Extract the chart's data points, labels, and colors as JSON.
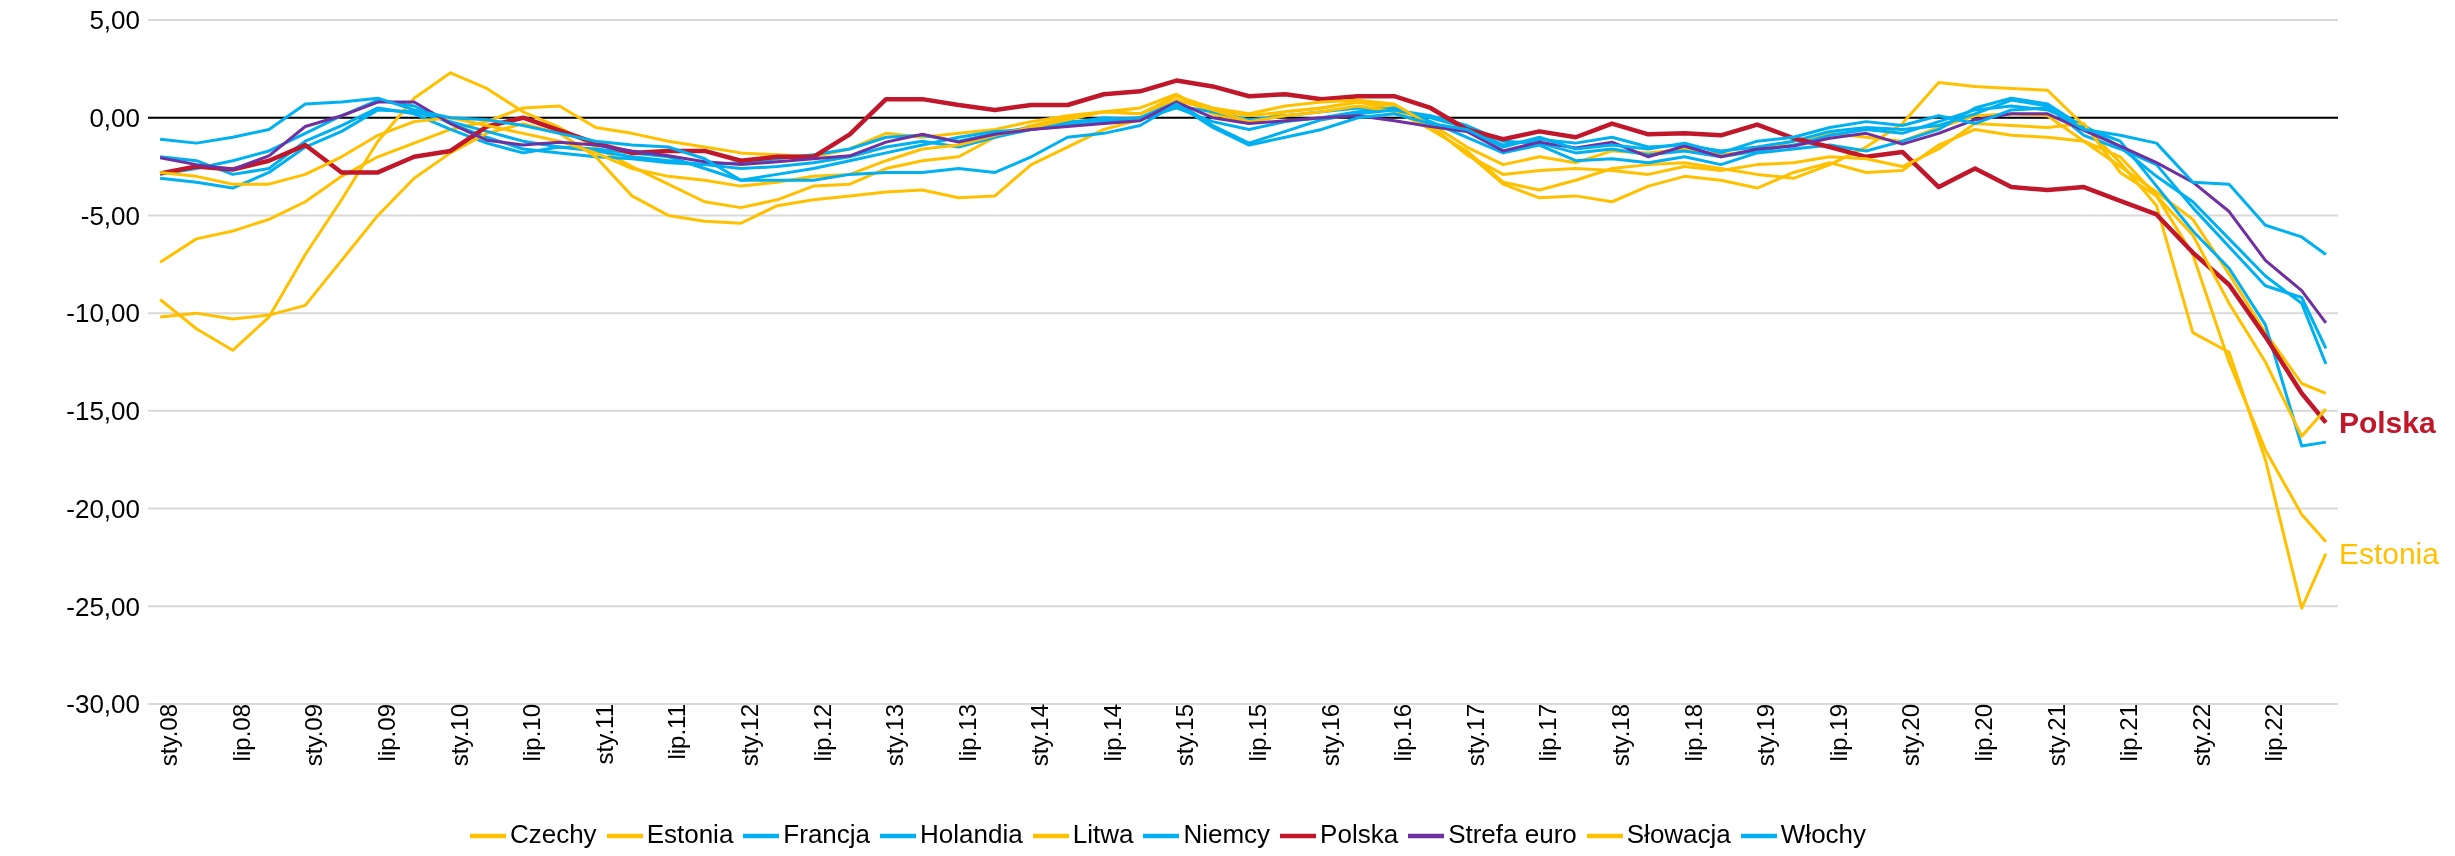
{
  "chart_data": {
    "type": "line",
    "x": [
      "2008-01",
      "2008-04",
      "2008-07",
      "2008-10",
      "2009-01",
      "2009-04",
      "2009-07",
      "2009-10",
      "2010-01",
      "2010-04",
      "2010-07",
      "2010-10",
      "2011-01",
      "2011-04",
      "2011-07",
      "2011-10",
      "2012-01",
      "2012-04",
      "2012-07",
      "2012-10",
      "2013-01",
      "2013-04",
      "2013-07",
      "2013-10",
      "2014-01",
      "2014-04",
      "2014-07",
      "2014-10",
      "2015-01",
      "2015-04",
      "2015-07",
      "2015-10",
      "2016-01",
      "2016-04",
      "2016-07",
      "2016-10",
      "2017-01",
      "2017-04",
      "2017-07",
      "2017-10",
      "2018-01",
      "2018-04",
      "2018-07",
      "2018-10",
      "2019-01",
      "2019-04",
      "2019-07",
      "2019-10",
      "2020-01",
      "2020-04",
      "2020-07",
      "2020-10",
      "2021-01",
      "2021-04",
      "2021-07",
      "2021-10",
      "2022-01",
      "2022-04",
      "2022-07",
      "2022-10",
      "2022-12"
    ],
    "series": [
      {
        "name": "Czechy",
        "color": "#ffc000",
        "values": [
          -7.4,
          -6.2,
          -5.8,
          -5.2,
          -4.3,
          -3.0,
          -2.0,
          -1.3,
          -0.6,
          -0.2,
          0.5,
          0.6,
          -0.5,
          -0.8,
          -1.2,
          -1.5,
          -1.8,
          -1.9,
          -2.0,
          -1.6,
          -0.8,
          -1.0,
          -0.8,
          -0.6,
          -0.2,
          0.1,
          0.3,
          0.2,
          0.9,
          0.4,
          0.1,
          0.3,
          0.5,
          0.8,
          0.6,
          -0.3,
          -1.5,
          -2.4,
          -2.0,
          -2.3,
          -1.7,
          -1.8,
          -1.6,
          -1.9,
          -1.7,
          -1.2,
          -0.8,
          -1.0,
          -1.2,
          -0.5,
          0.1,
          0.2,
          0.1,
          -1.2,
          -2.5,
          -3.8,
          -5.2,
          -8.0,
          -11.0,
          -13.6,
          -14.1
        ]
      },
      {
        "name": "Estonia",
        "color": "#ffc000",
        "values": [
          -9.3,
          -10.8,
          -11.9,
          -10.2,
          -7.0,
          -4.2,
          -1.2,
          1.0,
          2.3,
          1.5,
          0.3,
          -0.5,
          -1.5,
          -2.5,
          -3.4,
          -4.3,
          -4.6,
          -4.2,
          -3.5,
          -3.4,
          -2.6,
          -2.2,
          -2.0,
          -1.0,
          -0.4,
          0.0,
          0.3,
          0.5,
          1.2,
          0.2,
          -0.3,
          0.3,
          0.5,
          0.8,
          0.4,
          -0.6,
          -1.7,
          -3.3,
          -3.7,
          -3.2,
          -2.6,
          -2.4,
          -2.3,
          -2.6,
          -2.9,
          -3.1,
          -2.4,
          -1.5,
          -0.3,
          1.8,
          1.6,
          1.5,
          1.4,
          -0.4,
          -2.3,
          -4.5,
          -11.0,
          -12.0,
          -17.5,
          -25.1,
          -22.3
        ]
      },
      {
        "name": "Francja",
        "color": "#00b0f0",
        "values": [
          -2.0,
          -2.2,
          -2.9,
          -2.6,
          -1.2,
          -0.4,
          0.5,
          0.2,
          -0.6,
          -1.3,
          -1.8,
          -1.5,
          -1.7,
          -2.0,
          -2.2,
          -2.4,
          -2.3,
          -2.1,
          -1.9,
          -1.6,
          -1.0,
          -0.9,
          -1.2,
          -0.8,
          -0.5,
          -0.2,
          -0.1,
          0.0,
          0.6,
          0.3,
          -0.1,
          0.1,
          0.3,
          0.5,
          0.4,
          0.0,
          -0.5,
          -1.4,
          -1.1,
          -1.3,
          -1.0,
          -1.5,
          -1.4,
          -1.7,
          -1.5,
          -1.2,
          -0.7,
          -0.5,
          -0.6,
          -0.4,
          0.2,
          0.9,
          0.6,
          -0.9,
          -1.6,
          -2.4,
          -4.6,
          -6.6,
          -8.6,
          -9.2,
          -11.8
        ]
      },
      {
        "name": "Holandia",
        "color": "#00b0f0",
        "values": [
          -2.9,
          -2.6,
          -2.2,
          -1.7,
          -0.8,
          0.1,
          0.9,
          0.6,
          -0.3,
          -1.0,
          -1.6,
          -1.8,
          -2.0,
          -2.1,
          -2.3,
          -2.4,
          -2.6,
          -2.5,
          -2.3,
          -2.0,
          -1.5,
          -1.2,
          -1.5,
          -1.0,
          -0.6,
          -0.3,
          0.0,
          -0.1,
          0.5,
          -0.2,
          -0.6,
          -0.2,
          0.0,
          0.3,
          0.5,
          -0.2,
          -1.0,
          -1.8,
          -1.4,
          -2.2,
          -2.1,
          -2.3,
          -2.0,
          -2.4,
          -1.8,
          -1.6,
          -1.4,
          -1.7,
          -1.2,
          -0.6,
          0.5,
          1.0,
          0.7,
          -0.5,
          -1.2,
          -3.5,
          -5.8,
          -7.7,
          -10.6,
          -16.8,
          -16.6
        ]
      },
      {
        "name": "Litwa",
        "color": "#ffc000",
        "values": [
          -10.2,
          -10.0,
          -10.3,
          -10.1,
          -9.6,
          -7.3,
          -5.0,
          -3.1,
          -1.8,
          -0.8,
          -0.3,
          -0.8,
          -2.0,
          -4.0,
          -5.0,
          -5.3,
          -5.4,
          -4.5,
          -4.2,
          -4.0,
          -3.8,
          -3.7,
          -4.1,
          -4.0,
          -2.4,
          -1.5,
          -0.6,
          -0.1,
          0.9,
          0.4,
          -0.2,
          0.1,
          0.3,
          0.6,
          0.3,
          -0.5,
          -1.8,
          -3.4,
          -4.1,
          -4.0,
          -4.3,
          -3.5,
          -3.0,
          -3.2,
          -3.6,
          -2.8,
          -2.3,
          -2.8,
          -2.7,
          -1.4,
          -0.6,
          -0.9,
          -1.0,
          -1.2,
          -2.0,
          -4.0,
          -7.0,
          -12.5,
          -17.0,
          -20.3,
          -21.7
        ]
      },
      {
        "name": "Niemcy",
        "color": "#00b0f0",
        "values": [
          -3.1,
          -3.3,
          -3.6,
          -2.8,
          -1.5,
          -0.7,
          0.4,
          0.3,
          -0.2,
          -0.7,
          -1.2,
          -1.5,
          -1.6,
          -1.8,
          -2.0,
          -2.6,
          -3.2,
          -2.9,
          -2.6,
          -2.2,
          -1.8,
          -1.4,
          -1.0,
          -0.7,
          -0.6,
          -0.4,
          -0.2,
          0.0,
          0.8,
          -0.4,
          -1.3,
          -0.7,
          -0.1,
          0.2,
          0.4,
          0.1,
          -0.4,
          -1.2,
          -1.3,
          -1.8,
          -1.6,
          -1.9,
          -1.7,
          -2.0,
          -1.7,
          -1.4,
          -0.9,
          -0.6,
          -0.8,
          -0.2,
          0.4,
          0.6,
          0.4,
          -0.4,
          -1.5,
          -3.0,
          -4.3,
          -6.2,
          -8.1,
          -9.5,
          -12.6
        ]
      },
      {
        "name": "Polska",
        "color": "#c0182a",
        "values": [
          -2.85,
          -2.5,
          -2.65,
          -2.2,
          -1.4,
          -2.8,
          -2.8,
          -2.0,
          -1.7,
          -0.45,
          0,
          -0.65,
          -1.3,
          -1.8,
          -1.7,
          -1.7,
          -2.2,
          -2.0,
          -2.0,
          -0.85,
          0.95,
          0.95,
          0.65,
          0.4,
          0.65,
          0.65,
          1.2,
          1.35,
          1.9,
          1.6,
          1.1,
          1.2,
          0.95,
          1.1,
          1.1,
          0.5,
          -0.6,
          -1.1,
          -0.7,
          -1.0,
          -0.3,
          -0.85,
          -0.8,
          -0.9,
          -0.35,
          -1.05,
          -1.5,
          -2.0,
          -1.75,
          -3.55,
          -2.6,
          -3.55,
          -3.7,
          -3.55,
          -4.25,
          -4.95,
          -6.9,
          -8.55,
          -11.2,
          -14.1,
          -15.6
        ]
      },
      {
        "name": "Słowacja",
        "color": "#ffc000",
        "values": [
          -2.8,
          -3.0,
          -3.4,
          -3.4,
          -2.9,
          -2.0,
          -0.9,
          -0.2,
          0.0,
          -0.4,
          -0.8,
          -1.2,
          -1.8,
          -2.6,
          -3.0,
          -3.2,
          -3.5,
          -3.3,
          -3.0,
          -2.9,
          -2.2,
          -1.6,
          -1.4,
          -0.9,
          -0.5,
          -0.1,
          0.3,
          0.2,
          1.1,
          0.5,
          0.2,
          0.6,
          0.8,
          0.9,
          0.7,
          -0.4,
          -1.9,
          -2.9,
          -2.7,
          -2.6,
          -2.7,
          -2.9,
          -2.5,
          -2.7,
          -2.4,
          -2.3,
          -2.0,
          -2.1,
          -2.5,
          -1.6,
          -0.3,
          -0.4,
          -0.5,
          -0.3,
          -2.8,
          -4.0,
          -6.0,
          -9.5,
          -12.5,
          -16.3,
          -14.9
        ]
      },
      {
        "name": "Strefa euro",
        "color": "#7030a0",
        "values": [
          -2.05,
          -2.4,
          -2.65,
          -1.95,
          -0.45,
          0.1,
          0.8,
          0.8,
          -0.3,
          -1.15,
          -1.4,
          -1.25,
          -1.4,
          -1.7,
          -1.95,
          -2.25,
          -2.4,
          -2.25,
          -2.1,
          -1.95,
          -1.25,
          -0.85,
          -1.25,
          -0.85,
          -0.6,
          -0.45,
          -0.3,
          -0.15,
          0.8,
          0,
          -0.3,
          -0.15,
          0,
          0.1,
          -0.15,
          -0.45,
          -0.7,
          -1.7,
          -1.25,
          -1.55,
          -1.25,
          -2.0,
          -1.45,
          -2.0,
          -1.6,
          -1.45,
          -1.05,
          -0.8,
          -1.35,
          -0.8,
          -0.1,
          0.2,
          0.2,
          -0.65,
          -1.45,
          -2.3,
          -3.3,
          -4.8,
          -7.3,
          -8.85,
          -10.5
        ]
      },
      {
        "name": "Włochy",
        "color": "#00b0f0",
        "values": [
          -1.1,
          -1.3,
          -1.0,
          -0.6,
          0.7,
          0.8,
          1.0,
          0.4,
          0,
          -0.1,
          -0.4,
          -0.8,
          -1.2,
          -1.4,
          -1.5,
          -2.1,
          -3.2,
          -3.2,
          -3.2,
          -2.9,
          -2.8,
          -2.8,
          -2.6,
          -2.8,
          -2.0,
          -1.0,
          -0.8,
          -0.4,
          0.7,
          -0.5,
          -1.4,
          -1.0,
          -0.6,
          0,
          0.2,
          -0.3,
          -0.6,
          -1.5,
          -1.0,
          -1.6,
          -1.4,
          -1.6,
          -1.3,
          -1.8,
          -1.2,
          -1.0,
          -0.5,
          -0.2,
          -0.4,
          0.1,
          -0.3,
          0.4,
          0.5,
          -0.6,
          -0.9,
          -1.3,
          -3.3,
          -3.4,
          -5.5,
          -6.1,
          -7.0
        ]
      }
    ],
    "xlim": [
      "2007-12",
      "2023-01"
    ],
    "xticks": [
      {
        "value": "2008-01",
        "label": "sty.08"
      },
      {
        "value": "2008-07",
        "label": "lip.08"
      },
      {
        "value": "2009-01",
        "label": "sty.09"
      },
      {
        "value": "2009-07",
        "label": "lip.09"
      },
      {
        "value": "2010-01",
        "label": "sty.10"
      },
      {
        "value": "2010-07",
        "label": "lip.10"
      },
      {
        "value": "2011-01",
        "label": "sty.11"
      },
      {
        "value": "2011-07",
        "label": "lip.11"
      },
      {
        "value": "2012-01",
        "label": "sty.12"
      },
      {
        "value": "2012-07",
        "label": "lip.12"
      },
      {
        "value": "2013-01",
        "label": "sty.13"
      },
      {
        "value": "2013-07",
        "label": "lip.13"
      },
      {
        "value": "2014-01",
        "label": "sty.14"
      },
      {
        "value": "2014-07",
        "label": "lip.14"
      },
      {
        "value": "2015-01",
        "label": "sty.15"
      },
      {
        "value": "2015-07",
        "label": "lip.15"
      },
      {
        "value": "2016-01",
        "label": "sty.16"
      },
      {
        "value": "2016-07",
        "label": "lip.16"
      },
      {
        "value": "2017-01",
        "label": "sty.17"
      },
      {
        "value": "2017-07",
        "label": "lip.17"
      },
      {
        "value": "2018-01",
        "label": "sty.18"
      },
      {
        "value": "2018-07",
        "label": "lip.18"
      },
      {
        "value": "2019-01",
        "label": "sty.19"
      },
      {
        "value": "2019-07",
        "label": "lip.19"
      },
      {
        "value": "2020-01",
        "label": "sty.20"
      },
      {
        "value": "2020-07",
        "label": "lip.20"
      },
      {
        "value": "2021-01",
        "label": "sty.21"
      },
      {
        "value": "2021-07",
        "label": "lip.21"
      },
      {
        "value": "2022-01",
        "label": "sty.22"
      },
      {
        "value": "2022-07",
        "label": "lip.22"
      }
    ],
    "ylim": [
      -30,
      5
    ],
    "yticks": [
      {
        "value": -30,
        "label": "-30,00"
      },
      {
        "value": -25,
        "label": "-25,00"
      },
      {
        "value": -20,
        "label": "-20,00"
      },
      {
        "value": -15,
        "label": "-15,00"
      },
      {
        "value": -10,
        "label": "-10,00"
      },
      {
        "value": -5,
        "label": "-5,00"
      },
      {
        "value": 0,
        "label": "0,00"
      },
      {
        "value": 5,
        "label": "5,00"
      }
    ],
    "grid": "y",
    "ref_lines": [
      {
        "axis": "y",
        "value": 0,
        "color": "#000000"
      }
    ],
    "annotations": [
      {
        "text": "Polska",
        "x": "2022-12",
        "y": -15.6
      },
      {
        "text": "Estonia",
        "x": "2022-12",
        "y": -22.3
      }
    ],
    "legend": "bottom",
    "marker": "none",
    "line_style": "solid"
  }
}
